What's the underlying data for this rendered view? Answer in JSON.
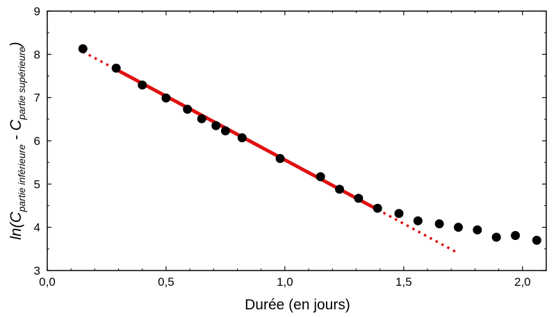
{
  "chart_data": {
    "type": "scatter",
    "xlabel": "Durée (en jours)",
    "ylabel": {
      "prefix": "ln(C",
      "sub1": "partie inférieure",
      "middle": " - C",
      "sub2": "partie supérieure",
      "suffix": ")"
    },
    "xlim": [
      0.0,
      2.1
    ],
    "ylim": [
      3,
      9
    ],
    "x_ticks": [
      0.0,
      0.5,
      1.0,
      1.5,
      2.0
    ],
    "x_tick_labels": [
      "0,0",
      "0,5",
      "1,0",
      "1,5",
      "2,0"
    ],
    "y_ticks": [
      3,
      4,
      5,
      6,
      7,
      8,
      9
    ],
    "y_tick_labels": [
      "3",
      "4",
      "5",
      "6",
      "7",
      "8",
      "9"
    ],
    "grid": false,
    "series": [
      {
        "kind": "points",
        "color": "#000000",
        "points": [
          [
            0.15,
            8.13
          ],
          [
            0.29,
            7.68
          ],
          [
            0.4,
            7.29
          ],
          [
            0.5,
            6.99
          ],
          [
            0.59,
            6.73
          ],
          [
            0.65,
            6.51
          ],
          [
            0.71,
            6.35
          ],
          [
            0.75,
            6.23
          ],
          [
            0.82,
            6.07
          ],
          [
            0.98,
            5.59
          ],
          [
            1.15,
            5.17
          ],
          [
            1.23,
            4.88
          ],
          [
            1.31,
            4.67
          ],
          [
            1.39,
            4.44
          ],
          [
            1.48,
            4.32
          ],
          [
            1.56,
            4.15
          ],
          [
            1.65,
            4.08
          ],
          [
            1.73,
            4.0
          ],
          [
            1.81,
            3.94
          ],
          [
            1.89,
            3.77
          ],
          [
            1.97,
            3.81
          ],
          [
            2.06,
            3.7
          ]
        ]
      },
      {
        "kind": "fit-line",
        "color": "#e01010",
        "style": "solid",
        "x": [
          0.28,
          1.39
        ],
        "y": [
          7.68,
          4.41
        ]
      },
      {
        "kind": "fit-line",
        "color": "#e01010",
        "style": "dotted",
        "x": [
          0.15,
          0.28
        ],
        "y": [
          8.06,
          7.68
        ]
      },
      {
        "kind": "fit-line",
        "color": "#e01010",
        "style": "dotted",
        "x": [
          1.39,
          1.72
        ],
        "y": [
          4.41,
          3.43
        ]
      }
    ]
  }
}
